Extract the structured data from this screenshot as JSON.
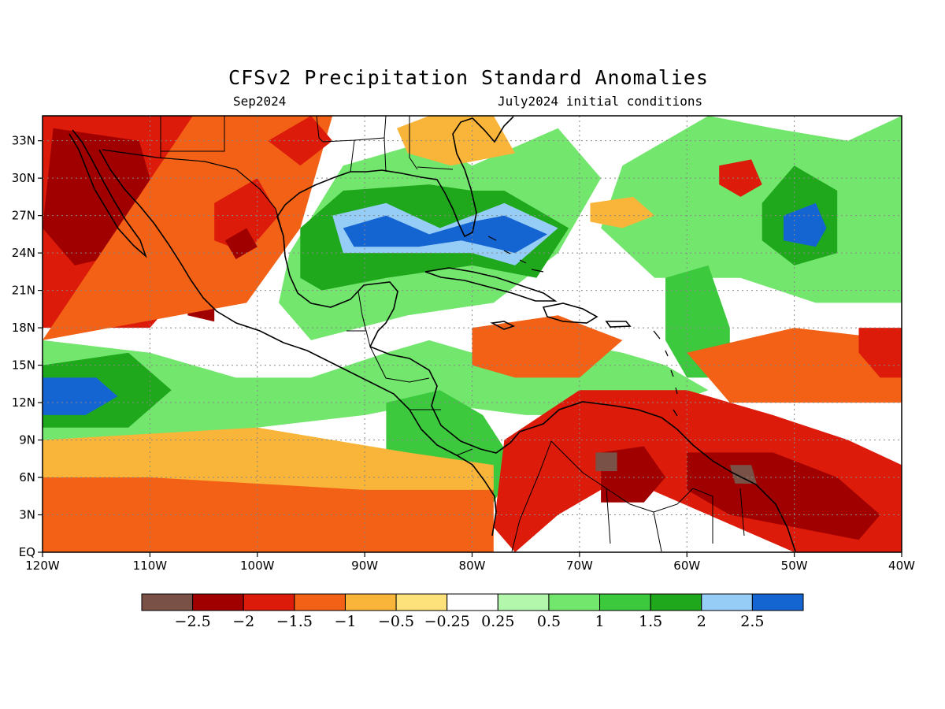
{
  "title": "CFSv2 Precipitation Standard Anomalies",
  "valid_month": "Sep2024",
  "initial_conditions": "July2024 initial conditions",
  "map": {
    "lon_range": [
      -120,
      -40
    ],
    "lat_range": [
      0,
      35
    ],
    "lon_ticks": [
      {
        "value": -120,
        "label": "120W"
      },
      {
        "value": -110,
        "label": "110W"
      },
      {
        "value": -100,
        "label": "100W"
      },
      {
        "value": -90,
        "label": "90W"
      },
      {
        "value": -80,
        "label": "80W"
      },
      {
        "value": -70,
        "label": "70W"
      },
      {
        "value": -60,
        "label": "60W"
      },
      {
        "value": -50,
        "label": "50W"
      },
      {
        "value": -40,
        "label": "40W"
      }
    ],
    "lat_ticks": [
      {
        "value": 0,
        "label": "EQ"
      },
      {
        "value": 3,
        "label": "3N"
      },
      {
        "value": 6,
        "label": "6N"
      },
      {
        "value": 9,
        "label": "9N"
      },
      {
        "value": 12,
        "label": "12N"
      },
      {
        "value": 15,
        "label": "15N"
      },
      {
        "value": 18,
        "label": "18N"
      },
      {
        "value": 21,
        "label": "21N"
      },
      {
        "value": 24,
        "label": "24N"
      },
      {
        "value": 27,
        "label": "27N"
      },
      {
        "value": 30,
        "label": "30N"
      },
      {
        "value": 33,
        "label": "33N"
      }
    ],
    "gridlines": "dotted",
    "anomaly_regions": [
      {
        "level": -1.5,
        "polygon": [
          [
            -120,
            35
          ],
          [
            -106,
            35
          ],
          [
            -104,
            31
          ],
          [
            -103,
            26
          ],
          [
            -106,
            22
          ],
          [
            -110,
            18
          ],
          [
            -120,
            18
          ]
        ]
      },
      {
        "level": -2,
        "polygon": [
          [
            -119,
            34
          ],
          [
            -111,
            33
          ],
          [
            -109,
            27
          ],
          [
            -112,
            24
          ],
          [
            -117,
            23
          ],
          [
            -120,
            26
          ]
        ]
      },
      {
        "level": -2,
        "polygon": [
          [
            -106,
            22
          ],
          [
            -104,
            21
          ],
          [
            -104,
            18.5
          ],
          [
            -106.5,
            19
          ]
        ]
      },
      {
        "level": -1,
        "polygon": [
          [
            -120,
            17
          ],
          [
            -101,
            20
          ],
          [
            -96,
            26
          ],
          [
            -93,
            35
          ],
          [
            -106,
            35
          ]
        ]
      },
      {
        "level": -1.5,
        "polygon": [
          [
            -104,
            28
          ],
          [
            -100,
            30
          ],
          [
            -98,
            27
          ],
          [
            -101,
            24
          ],
          [
            -104,
            25
          ]
        ]
      },
      {
        "level": -2,
        "polygon": [
          [
            -103,
            25
          ],
          [
            -101,
            26
          ],
          [
            -100,
            24.5
          ],
          [
            -102,
            23.5
          ]
        ]
      },
      {
        "level": -1.5,
        "polygon": [
          [
            -99,
            33
          ],
          [
            -95,
            35
          ],
          [
            -93,
            33
          ],
          [
            -96,
            31
          ]
        ]
      },
      {
        "level": 0.5,
        "polygon": [
          [
            -97,
            24
          ],
          [
            -92,
            31
          ],
          [
            -84,
            33
          ],
          [
            -80,
            31
          ],
          [
            -72,
            34
          ],
          [
            -68,
            30
          ],
          [
            -72,
            24
          ],
          [
            -78,
            20
          ],
          [
            -86,
            19
          ],
          [
            -95,
            17
          ],
          [
            -98,
            20
          ]
        ]
      },
      {
        "level": 1.5,
        "polygon": [
          [
            -96,
            26
          ],
          [
            -92,
            29
          ],
          [
            -84,
            29.5
          ],
          [
            -80,
            29
          ],
          [
            -77,
            29
          ],
          [
            -71,
            26
          ],
          [
            -74,
            22
          ],
          [
            -80,
            23
          ],
          [
            -88,
            22
          ],
          [
            -94,
            21
          ],
          [
            -96,
            22
          ]
        ]
      },
      {
        "level": 2,
        "polygon": [
          [
            -93,
            27
          ],
          [
            -88,
            28
          ],
          [
            -83,
            26
          ],
          [
            -80,
            27
          ],
          [
            -77,
            28
          ],
          [
            -72,
            26
          ],
          [
            -76,
            23
          ],
          [
            -80,
            24
          ],
          [
            -85,
            24
          ],
          [
            -92,
            24
          ]
        ]
      },
      {
        "level": 2.5,
        "polygon": [
          [
            -92,
            26
          ],
          [
            -88,
            27
          ],
          [
            -84,
            25.5
          ],
          [
            -80,
            26.5
          ],
          [
            -77,
            27
          ],
          [
            -73,
            25.5
          ],
          [
            -76,
            24
          ],
          [
            -81,
            25
          ],
          [
            -85,
            24.5
          ],
          [
            -91,
            24.5
          ]
        ]
      },
      {
        "level": -0.5,
        "polygon": [
          [
            -87,
            34
          ],
          [
            -84,
            35
          ],
          [
            -78,
            35
          ],
          [
            -76,
            32
          ],
          [
            -82,
            31
          ],
          [
            -86,
            32
          ]
        ]
      },
      {
        "level": 0.5,
        "polygon": [
          [
            -66,
            31
          ],
          [
            -58,
            35
          ],
          [
            -52,
            34
          ],
          [
            -45,
            33
          ],
          [
            -40,
            35
          ],
          [
            -40,
            20
          ],
          [
            -48,
            20
          ],
          [
            -55,
            22
          ],
          [
            -63,
            22
          ],
          [
            -68,
            26
          ]
        ]
      },
      {
        "level": 1.5,
        "polygon": [
          [
            -53,
            28
          ],
          [
            -50,
            31
          ],
          [
            -46,
            29
          ],
          [
            -46,
            24
          ],
          [
            -50,
            23
          ],
          [
            -53,
            25
          ]
        ]
      },
      {
        "level": 2.5,
        "polygon": [
          [
            -51,
            27
          ],
          [
            -48,
            28
          ],
          [
            -47,
            26
          ],
          [
            -48,
            24.5
          ],
          [
            -51,
            25
          ]
        ]
      },
      {
        "level": -1.5,
        "polygon": [
          [
            -57,
            31
          ],
          [
            -54,
            31.5
          ],
          [
            -53,
            29.5
          ],
          [
            -55,
            28.5
          ],
          [
            -57,
            29.5
          ]
        ]
      },
      {
        "level": -0.5,
        "polygon": [
          [
            -69,
            28
          ],
          [
            -65,
            28.5
          ],
          [
            -63,
            27
          ],
          [
            -66,
            26
          ],
          [
            -69,
            26.5
          ]
        ]
      },
      {
        "level": 1,
        "polygon": [
          [
            -62,
            22
          ],
          [
            -58,
            23
          ],
          [
            -56,
            18
          ],
          [
            -56,
            14
          ],
          [
            -60,
            14
          ],
          [
            -62,
            17
          ]
        ]
      },
      {
        "level": 0.5,
        "polygon": [
          [
            -120,
            17
          ],
          [
            -110,
            16
          ],
          [
            -102,
            14
          ],
          [
            -95,
            14
          ],
          [
            -88,
            16
          ],
          [
            -84,
            17
          ],
          [
            -80,
            16
          ],
          [
            -72,
            17
          ],
          [
            -66,
            16
          ],
          [
            -62,
            15
          ],
          [
            -58,
            13
          ],
          [
            -64,
            11
          ],
          [
            -75,
            11
          ],
          [
            -84,
            12
          ],
          [
            -90,
            11
          ],
          [
            -100,
            10
          ],
          [
            -110,
            9
          ],
          [
            -120,
            9
          ]
        ]
      },
      {
        "level": 1.5,
        "polygon": [
          [
            -120,
            15
          ],
          [
            -112,
            16
          ],
          [
            -108,
            13
          ],
          [
            -112,
            10
          ],
          [
            -120,
            10
          ]
        ]
      },
      {
        "level": 2.5,
        "polygon": [
          [
            -120,
            14
          ],
          [
            -115,
            14
          ],
          [
            -113,
            12.5
          ],
          [
            -116,
            11
          ],
          [
            -120,
            11
          ]
        ]
      },
      {
        "level": 1,
        "polygon": [
          [
            -88,
            12
          ],
          [
            -83,
            13
          ],
          [
            -79,
            11
          ],
          [
            -76,
            7
          ],
          [
            -78,
            4
          ],
          [
            -84,
            6
          ],
          [
            -88,
            8
          ]
        ]
      },
      {
        "level": -1,
        "polygon": [
          [
            -120,
            8
          ],
          [
            -100,
            9
          ],
          [
            -85,
            7
          ],
          [
            -78,
            5
          ],
          [
            -78,
            0
          ],
          [
            -120,
            0
          ]
        ]
      },
      {
        "level": -0.5,
        "polygon": [
          [
            -120,
            9
          ],
          [
            -100,
            10
          ],
          [
            -86,
            8
          ],
          [
            -78,
            7
          ],
          [
            -78,
            5
          ],
          [
            -90,
            5
          ],
          [
            -110,
            6
          ],
          [
            -120,
            6
          ]
        ]
      },
      {
        "level": -1,
        "polygon": [
          [
            -80,
            18
          ],
          [
            -72,
            19
          ],
          [
            -66,
            17
          ],
          [
            -70,
            14
          ],
          [
            -76,
            14
          ],
          [
            -80,
            15
          ]
        ]
      },
      {
        "level": -1.5,
        "polygon": [
          [
            -77,
            9
          ],
          [
            -70,
            13
          ],
          [
            -60,
            13
          ],
          [
            -52,
            11
          ],
          [
            -45,
            9
          ],
          [
            -40,
            7
          ],
          [
            -40,
            0
          ],
          [
            -50,
            0
          ],
          [
            -58,
            3
          ],
          [
            -66,
            6
          ],
          [
            -72,
            3
          ],
          [
            -76,
            0
          ],
          [
            -78,
            2
          ]
        ]
      },
      {
        "level": -2,
        "polygon": [
          [
            -68,
            8
          ],
          [
            -64,
            8.5
          ],
          [
            -62,
            6
          ],
          [
            -64,
            4
          ],
          [
            -68,
            4
          ]
        ]
      },
      {
        "level": -2,
        "polygon": [
          [
            -60,
            8
          ],
          [
            -52,
            8
          ],
          [
            -46,
            6
          ],
          [
            -42,
            3
          ],
          [
            -44,
            1
          ],
          [
            -50,
            2
          ],
          [
            -56,
            3
          ],
          [
            -60,
            5
          ]
        ]
      },
      {
        "level": -2.5,
        "polygon": [
          [
            -56,
            7
          ],
          [
            -54,
            7
          ],
          [
            -53.5,
            5.5
          ],
          [
            -55.5,
            5.5
          ]
        ]
      },
      {
        "level": -2.5,
        "polygon": [
          [
            -68.5,
            8
          ],
          [
            -66.5,
            8
          ],
          [
            -66.5,
            6.5
          ],
          [
            -68.5,
            6.5
          ]
        ]
      },
      {
        "level": -1,
        "polygon": [
          [
            -60,
            16
          ],
          [
            -50,
            18
          ],
          [
            -40,
            17
          ],
          [
            -40,
            12
          ],
          [
            -48,
            12
          ],
          [
            -56,
            12
          ]
        ]
      },
      {
        "level": -1.5,
        "polygon": [
          [
            -44,
            18
          ],
          [
            -40,
            18
          ],
          [
            -40,
            14
          ],
          [
            -42,
            14
          ],
          [
            -44,
            16
          ]
        ]
      }
    ]
  },
  "chart_data": {
    "type": "heatmap",
    "title": "CFSv2 Precipitation Standard Anomalies",
    "subtitle": "Sep2024",
    "note": "July2024 initial conditions",
    "x_range": [
      -120,
      -40
    ],
    "y_range": [
      0,
      35
    ],
    "colorbar": {
      "boundaries": [
        -2.5,
        -2,
        -1.5,
        -1,
        -0.5,
        -0.25,
        0.25,
        0.5,
        1,
        1.5,
        2,
        2.5
      ],
      "labels": [
        "−2.5",
        "−2",
        "−1.5",
        "−1",
        "−0.5",
        "−0.25",
        "0.25",
        "0.5",
        "1",
        "1.5",
        "2",
        "2.5"
      ],
      "colors": [
        "#7a5146",
        "#a10000",
        "#dc1b0a",
        "#f26116",
        "#f9b43a",
        "#fde27c",
        "#ffffff",
        "#b3f7ad",
        "#73e66e",
        "#3cc93d",
        "#1fa81c",
        "#96cdf7",
        "#1464d2"
      ]
    }
  }
}
